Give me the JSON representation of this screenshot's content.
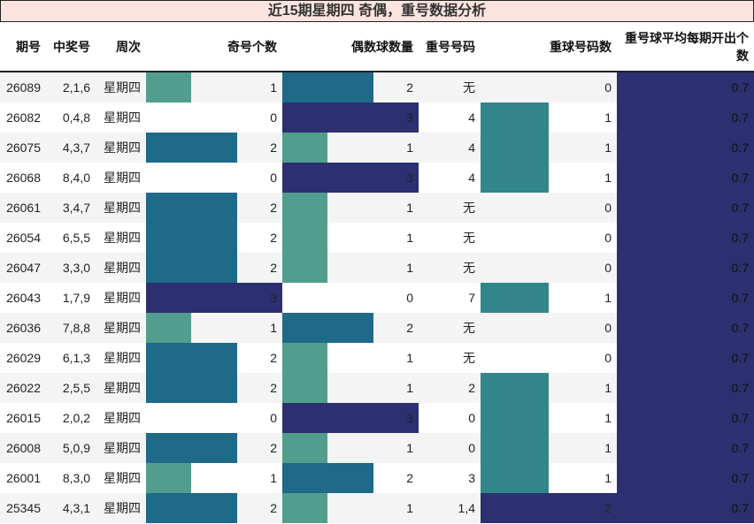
{
  "title": "近15期星期四 奇偶，重号数据分析",
  "headers": [
    "期号",
    "中奖号",
    "周次",
    "奇号个数",
    "偶数球数量",
    "重号号码",
    "重球号码数",
    "重号球平均每期开出个数"
  ],
  "colors": {
    "c1": "#519e8e",
    "c2": "#1e6a88",
    "c3": "#2c3070",
    "c_teal": "#32858a",
    "title_bg": "#fce4de"
  },
  "rows": [
    {
      "id": "26089",
      "nums": "2,1,6",
      "week": "星期四",
      "odd": "1",
      "even": "2",
      "rep": "无",
      "repn": "0",
      "avg": "0.7"
    },
    {
      "id": "26082",
      "nums": "0,4,8",
      "week": "星期四",
      "odd": "0",
      "even": "3",
      "rep": "4",
      "repn": "1",
      "avg": "0.7"
    },
    {
      "id": "26075",
      "nums": "4,3,7",
      "week": "星期四",
      "odd": "2",
      "even": "1",
      "rep": "4",
      "repn": "1",
      "avg": "0.7"
    },
    {
      "id": "26068",
      "nums": "8,4,0",
      "week": "星期四",
      "odd": "0",
      "even": "3",
      "rep": "4",
      "repn": "1",
      "avg": "0.7"
    },
    {
      "id": "26061",
      "nums": "3,4,7",
      "week": "星期四",
      "odd": "2",
      "even": "1",
      "rep": "无",
      "repn": "0",
      "avg": "0.7"
    },
    {
      "id": "26054",
      "nums": "6,5,5",
      "week": "星期四",
      "odd": "2",
      "even": "1",
      "rep": "无",
      "repn": "0",
      "avg": "0.7"
    },
    {
      "id": "26047",
      "nums": "3,3,0",
      "week": "星期四",
      "odd": "2",
      "even": "1",
      "rep": "无",
      "repn": "0",
      "avg": "0.7"
    },
    {
      "id": "26043",
      "nums": "1,7,9",
      "week": "星期四",
      "odd": "3",
      "even": "0",
      "rep": "7",
      "repn": "1",
      "avg": "0.7"
    },
    {
      "id": "26036",
      "nums": "7,8,8",
      "week": "星期四",
      "odd": "1",
      "even": "2",
      "rep": "无",
      "repn": "0",
      "avg": "0.7"
    },
    {
      "id": "26029",
      "nums": "6,1,3",
      "week": "星期四",
      "odd": "2",
      "even": "1",
      "rep": "无",
      "repn": "0",
      "avg": "0.7"
    },
    {
      "id": "26022",
      "nums": "2,5,5",
      "week": "星期四",
      "odd": "2",
      "even": "1",
      "rep": "2",
      "repn": "1",
      "avg": "0.7"
    },
    {
      "id": "26015",
      "nums": "2,0,2",
      "week": "星期四",
      "odd": "0",
      "even": "3",
      "rep": "0",
      "repn": "1",
      "avg": "0.7"
    },
    {
      "id": "26008",
      "nums": "5,0,9",
      "week": "星期四",
      "odd": "2",
      "even": "1",
      "rep": "0",
      "repn": "1",
      "avg": "0.7"
    },
    {
      "id": "26001",
      "nums": "8,3,0",
      "week": "星期四",
      "odd": "1",
      "even": "2",
      "rep": "3",
      "repn": "1",
      "avg": "0.7"
    },
    {
      "id": "25345",
      "nums": "4,3,1",
      "week": "星期四",
      "odd": "2",
      "even": "1",
      "rep": "1,4",
      "repn": "2",
      "avg": "0.7"
    }
  ]
}
